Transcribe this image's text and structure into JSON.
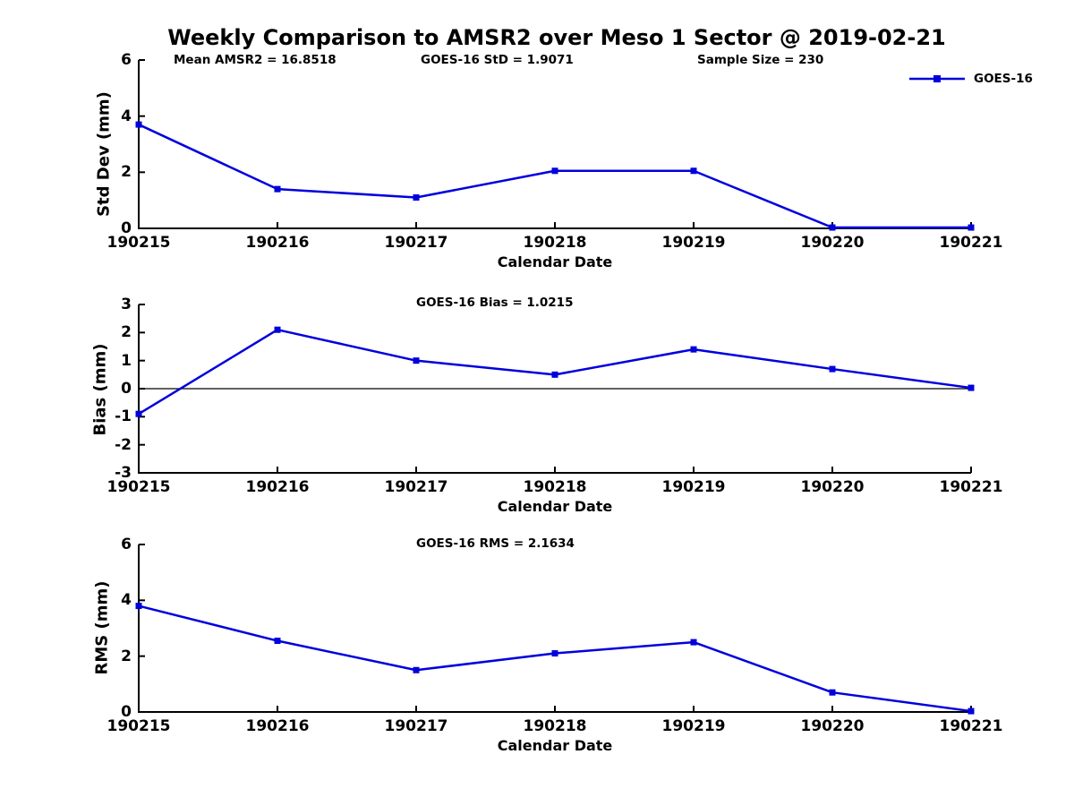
{
  "title": "Weekly Comparison to AMSR2 over Meso 1 Sector @ 2019-02-21",
  "legend": {
    "label": "GOES-16"
  },
  "colors": {
    "line": "#0000dd",
    "axis": "#000000",
    "zero_line": "#000000"
  },
  "chart_data": [
    {
      "type": "line",
      "name": "std-dev",
      "annotations": [
        "Mean AMSR2 = 16.8518",
        "GOES-16 StD = 1.9071",
        "Sample Size = 230"
      ],
      "categories": [
        "190215",
        "190216",
        "190217",
        "190218",
        "190219",
        "190220",
        "190221"
      ],
      "series": [
        {
          "name": "GOES-16",
          "values": [
            3.7,
            1.4,
            1.1,
            2.05,
            2.05,
            0.03,
            0.03
          ]
        }
      ],
      "xlabel": "Calendar Date",
      "ylabel": "Std Dev (mm)",
      "ylim": [
        0,
        6
      ],
      "yticks": [
        0,
        2,
        4,
        6
      ],
      "grid": false,
      "zero_line": false,
      "legend_position": "top-right"
    },
    {
      "type": "line",
      "name": "bias",
      "annotations": [
        "GOES-16 Bias  = 1.0215"
      ],
      "categories": [
        "190215",
        "190216",
        "190217",
        "190218",
        "190219",
        "190220",
        "190221"
      ],
      "series": [
        {
          "name": "GOES-16",
          "values": [
            -0.9,
            2.1,
            1.0,
            0.5,
            1.4,
            0.7,
            0.03
          ]
        }
      ],
      "xlabel": "Calendar Date",
      "ylabel": "Bias (mm)",
      "ylim": [
        -3,
        3
      ],
      "yticks": [
        -3,
        -2,
        -1,
        0,
        1,
        2,
        3
      ],
      "grid": false,
      "zero_line": true,
      "legend_position": "none"
    },
    {
      "type": "line",
      "name": "rms",
      "annotations": [
        "GOES-16 RMS = 2.1634"
      ],
      "categories": [
        "190215",
        "190216",
        "190217",
        "190218",
        "190219",
        "190220",
        "190221"
      ],
      "series": [
        {
          "name": "GOES-16",
          "values": [
            3.8,
            2.55,
            1.5,
            2.1,
            2.5,
            0.7,
            0.03
          ]
        }
      ],
      "xlabel": "Calendar Date",
      "ylabel": "RMS (mm)",
      "ylim": [
        0,
        6
      ],
      "yticks": [
        0,
        2,
        4,
        6
      ],
      "grid": false,
      "zero_line": false,
      "legend_position": "none"
    }
  ]
}
